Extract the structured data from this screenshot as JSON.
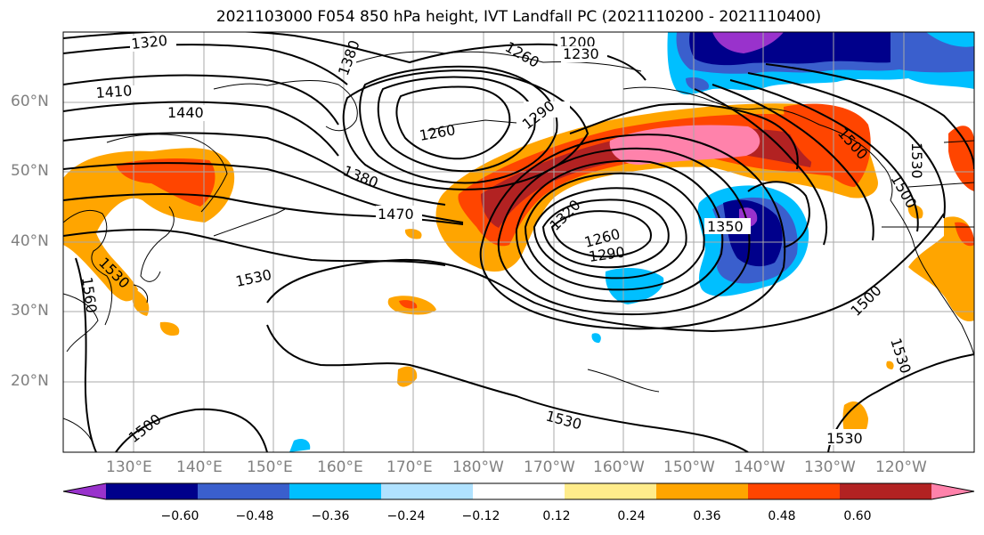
{
  "title": "2021103000 F054 850 hPa height, IVT Landfall PC (2021110200 - 2021110400)",
  "lat_labels": [
    "60°N",
    "50°N",
    "40°N",
    "30°N",
    "20°N"
  ],
  "lon_labels": [
    "130°E",
    "140°E",
    "150°E",
    "160°E",
    "170°E",
    "180°W",
    "170°W",
    "160°W",
    "150°W",
    "140°W",
    "130°W",
    "120°W"
  ],
  "contour_labels": [
    "1320",
    "1200",
    "1230",
    "1260",
    "1410",
    "1440",
    "1290",
    "1260",
    "1380",
    "1470",
    "1320",
    "1260",
    "1290",
    "1350",
    "1530",
    "1530",
    "1560",
    "1530",
    "1500",
    "1500",
    "1530",
    "1530",
    "1500",
    "1530",
    "1380",
    "1500"
  ],
  "colorbar": {
    "colors": [
      "#9932cc",
      "#00008b",
      "#3a5fcd",
      "#00bfff",
      "#b0e2ff",
      "#ffffff",
      "#ffec8b",
      "#ffa500",
      "#ff4500",
      "#b22222",
      "#ff82ab"
    ],
    "tick_labels": [
      "−0.60",
      "−0.48",
      "−0.36",
      "−0.24",
      "−0.12",
      "0.12",
      "0.24",
      "0.36",
      "0.48",
      "0.60"
    ]
  }
}
